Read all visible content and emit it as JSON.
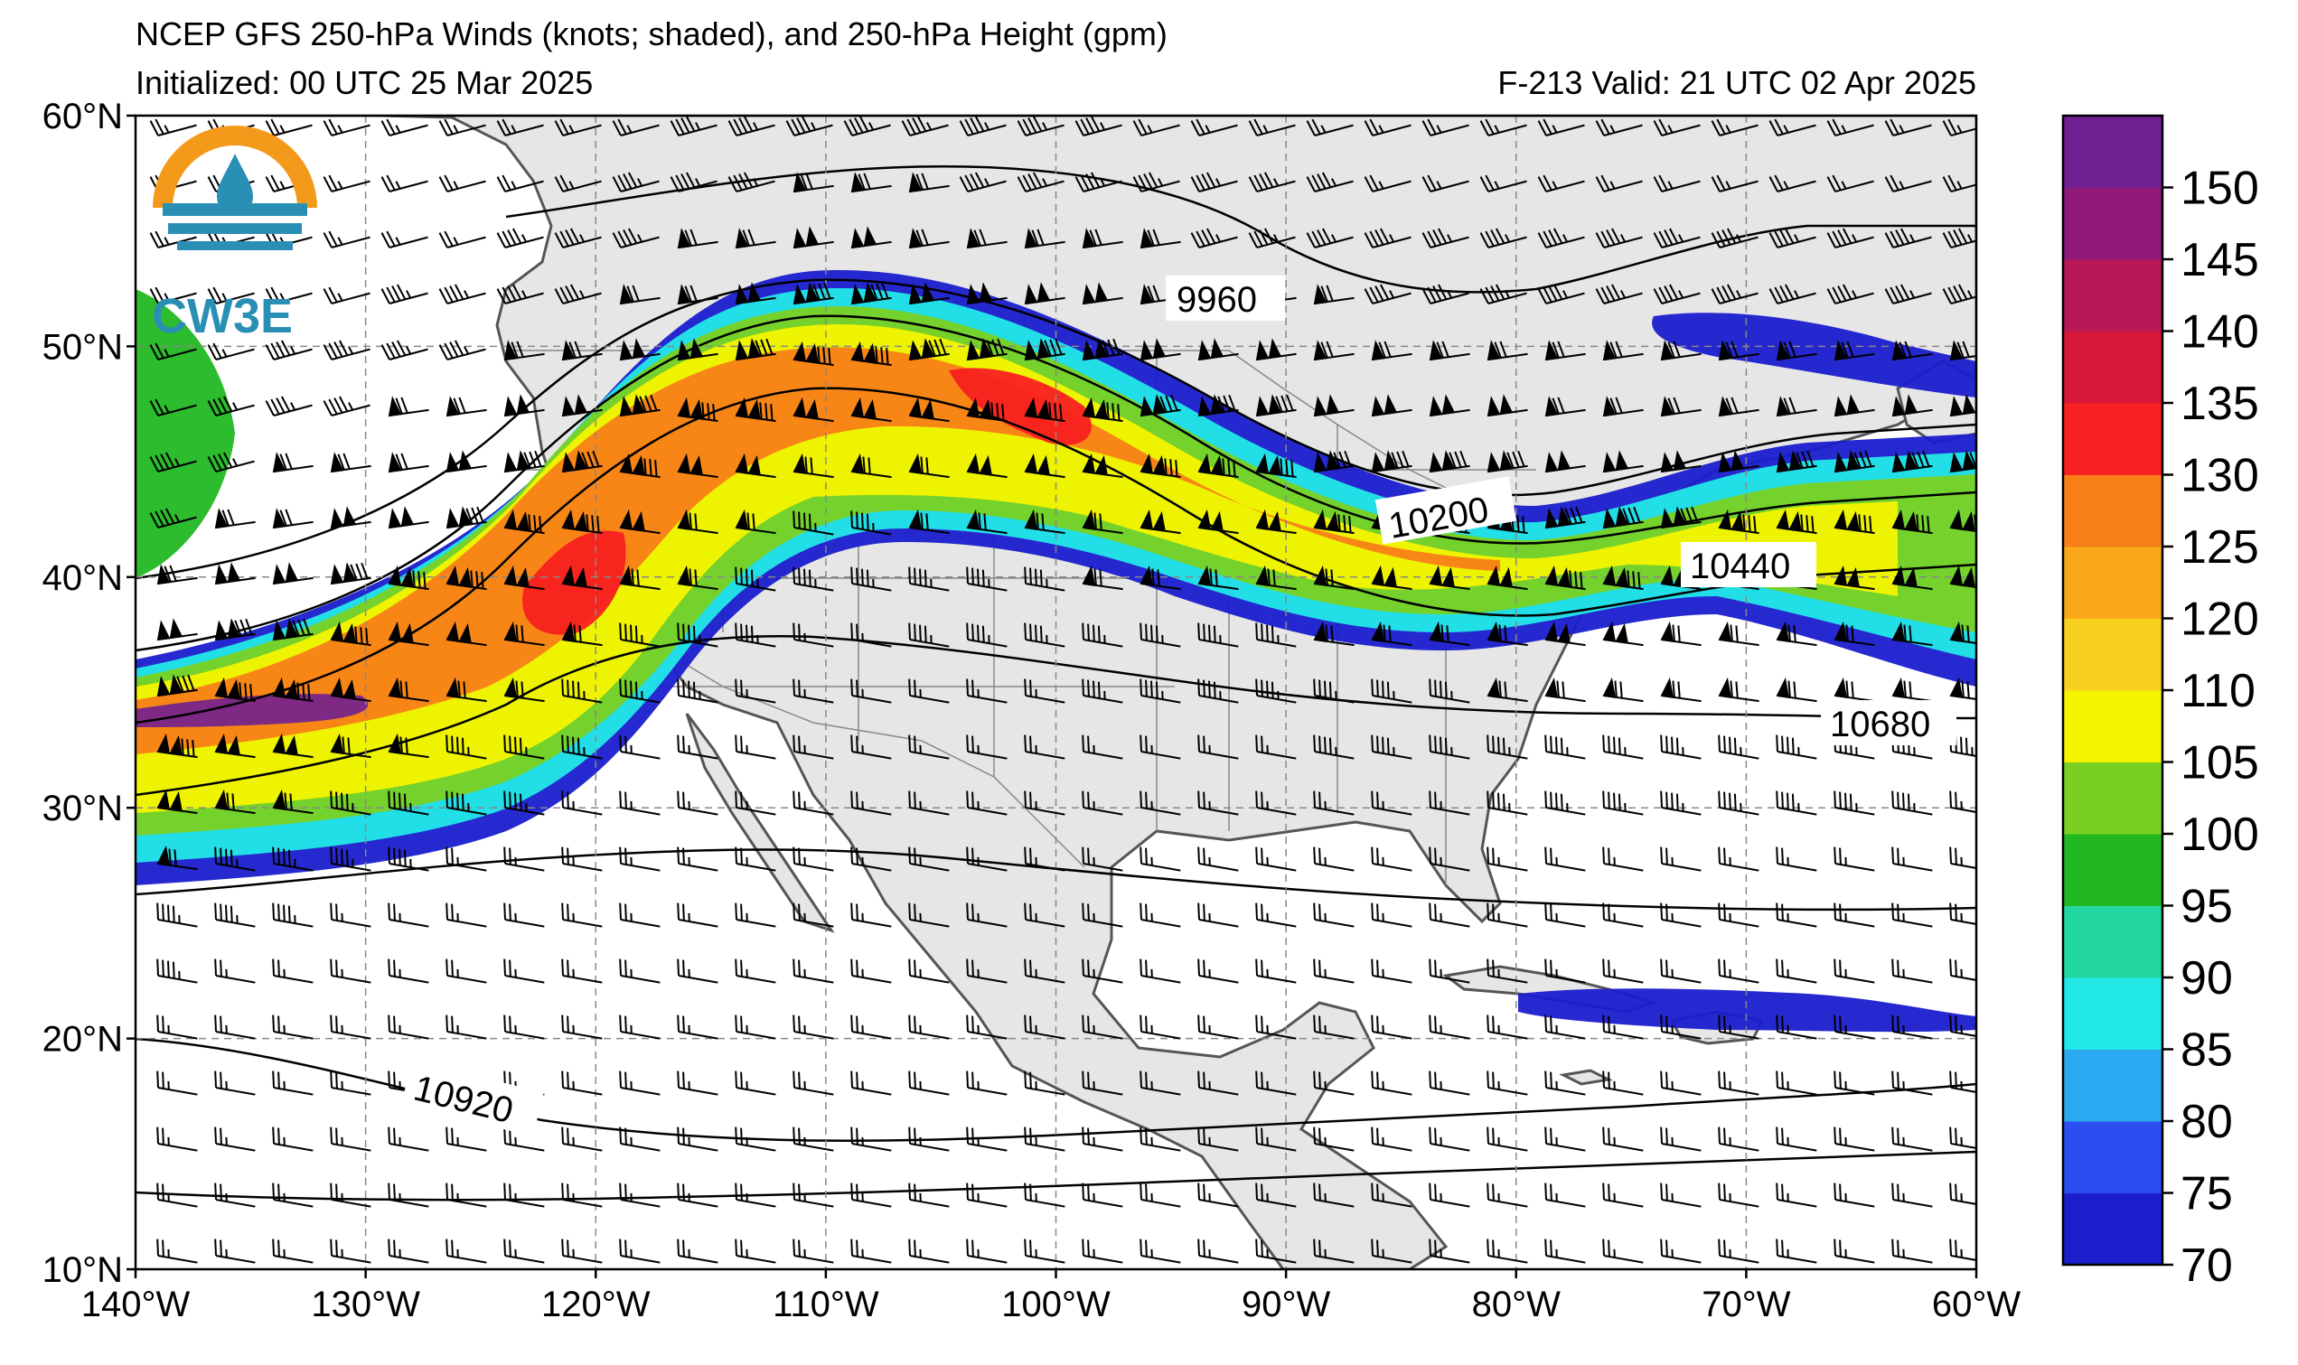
{
  "header": {
    "title": "NCEP GFS 250-hPa Winds (knots; shaded), and 250-hPa Height (gpm)",
    "initialized": "Initialized: 00 UTC 25 Mar 2025",
    "valid": "F-213  Valid: 21 UTC 02 Apr 2025"
  },
  "logo": {
    "text": "CW3E"
  },
  "axes": {
    "lon_labels": [
      "140°W",
      "130°W",
      "120°W",
      "110°W",
      "100°W",
      "90°W",
      "80°W",
      "70°W",
      "60°W"
    ],
    "lon_values": [
      -140,
      -130,
      -120,
      -110,
      -100,
      -90,
      -80,
      -70,
      -60
    ],
    "lat_labels": [
      "60°N",
      "50°N",
      "40°N",
      "30°N",
      "20°N",
      "10°N"
    ],
    "lat_values": [
      60,
      50,
      40,
      30,
      20,
      10
    ],
    "lon_range": [
      -140,
      -60
    ],
    "lat_range": [
      10,
      60
    ],
    "grid": "dashed"
  },
  "contour_labels": [
    "9960",
    "10200",
    "10440",
    "10680",
    "10920"
  ],
  "colorbar": {
    "labels": [
      "150",
      "145",
      "140",
      "135",
      "130",
      "125",
      "120",
      "110",
      "105",
      "100",
      "95",
      "90",
      "85",
      "80",
      "75",
      "70"
    ],
    "levels": [
      70,
      75,
      80,
      85,
      90,
      95,
      100,
      105,
      110,
      120,
      125,
      130,
      135,
      140,
      145,
      150,
      155
    ],
    "colors": [
      "#1a1ecc",
      "#2a4ef0",
      "#2aa8f0",
      "#22e8e8",
      "#22d8a0",
      "#22b822",
      "#7ad022",
      "#f4f400",
      "#f8d020",
      "#f8a818",
      "#f88018",
      "#f82020",
      "#d81838",
      "#b81858",
      "#901878",
      "#702090"
    ]
  },
  "colors": {
    "land": "#e6e6e6",
    "ocean": "#ffffff",
    "coast": "#555555",
    "contour": "#000000",
    "logo_orange": "#f49a1a",
    "logo_blue": "#2a8fb5"
  }
}
